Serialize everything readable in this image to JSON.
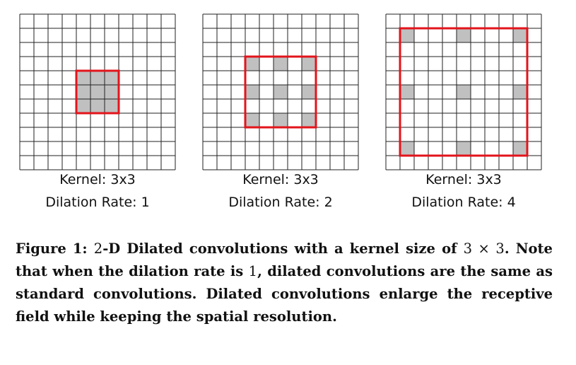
{
  "colors": {
    "grid_line": "#222222",
    "cell_fill": "#c0c0c0",
    "receptive_box": "#e3141b"
  },
  "panels": [
    {
      "kernel_label": "Kernel: 3x3",
      "rate_label": "Dilation Rate: 1",
      "kernel_size": 3,
      "dilation_rate": 1
    },
    {
      "kernel_label": "Kernel: 3x3",
      "rate_label": "Dilation Rate: 2",
      "kernel_size": 3,
      "dilation_rate": 2
    },
    {
      "kernel_label": "Kernel: 3x3",
      "rate_label": "Dilation Rate: 4",
      "kernel_size": 3,
      "dilation_rate": 4
    }
  ],
  "grid_cells": 11,
  "caption": {
    "label": "Figure 1:",
    "dim": "2",
    "part1": "-D Dilated convolutions with a kernel size of ",
    "kernel": "3 × 3",
    "part2": ". Note that when the dilation rate is ",
    "rate": "1",
    "part3": ", dilated convolutions are the same as standard convolutions. Dilated convolutions enlarge the receptive field while keeping the spatial resolution."
  }
}
